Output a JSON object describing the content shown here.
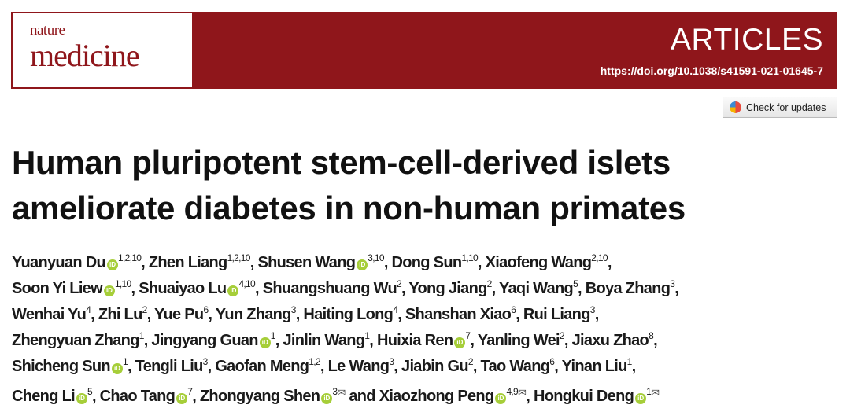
{
  "journal": {
    "logo_top": "nature",
    "logo_bottom": "medicine",
    "section": "ARTICLES",
    "doi": "https://doi.org/10.1038/s41591-021-01645-7",
    "brand_color": "#8f161b"
  },
  "check_updates": {
    "label": "Check for updates",
    "icon": "crossmark-icon"
  },
  "title": {
    "line1": "Human pluripotent stem-cell-derived islets",
    "line2": "ameliorate diabetes in non-human primates"
  },
  "author_lines": [
    [
      {
        "name": "Yuanyuan Du",
        "orcid": true,
        "sup": "1,2,10"
      },
      {
        "name": "Zhen Liang",
        "sup": "1,2,10"
      },
      {
        "name": "Shusen Wang",
        "orcid": true,
        "sup": "3,10"
      },
      {
        "name": "Dong Sun",
        "sup": "1,10"
      },
      {
        "name": "Xiaofeng Wang",
        "sup": "2,10",
        "trail": ","
      }
    ],
    [
      {
        "name": "Soon Yi Liew",
        "orcid": true,
        "sup": "1,10"
      },
      {
        "name": "Shuaiyao Lu",
        "orcid": true,
        "sup": "4,10"
      },
      {
        "name": "Shuangshuang Wu",
        "sup": "2"
      },
      {
        "name": "Yong Jiang",
        "sup": "2"
      },
      {
        "name": "Yaqi Wang",
        "sup": "5"
      },
      {
        "name": "Boya Zhang",
        "sup": "3",
        "trail": ","
      }
    ],
    [
      {
        "name": "Wenhai Yu",
        "sup": "4"
      },
      {
        "name": "Zhi Lu",
        "sup": "2"
      },
      {
        "name": "Yue Pu",
        "sup": "6"
      },
      {
        "name": "Yun Zhang",
        "sup": "3"
      },
      {
        "name": "Haiting Long",
        "sup": "4"
      },
      {
        "name": "Shanshan Xiao",
        "sup": "6"
      },
      {
        "name": "Rui Liang",
        "sup": "3",
        "trail": ","
      }
    ],
    [
      {
        "name": "Zhengyuan Zhang",
        "sup": "1"
      },
      {
        "name": "Jingyang Guan",
        "orcid": true,
        "sup": "1"
      },
      {
        "name": "Jinlin Wang",
        "sup": "1"
      },
      {
        "name": "Huixia Ren",
        "orcid": true,
        "sup": "7"
      },
      {
        "name": "Yanling Wei",
        "sup": "2"
      },
      {
        "name": "Jiaxu Zhao",
        "sup": "8",
        "trail": ","
      }
    ],
    [
      {
        "name": "Shicheng Sun",
        "orcid": true,
        "sup": "1"
      },
      {
        "name": "Tengli Liu",
        "sup": "3"
      },
      {
        "name": "Gaofan Meng",
        "sup": "1,2"
      },
      {
        "name": "Le Wang",
        "sup": "3"
      },
      {
        "name": "Jiabin Gu",
        "sup": "2"
      },
      {
        "name": "Tao Wang",
        "sup": "6"
      },
      {
        "name": "Yinan Liu",
        "sup": "1",
        "trail": ","
      }
    ],
    [
      {
        "name": "Cheng Li",
        "orcid": true,
        "sup": "5"
      },
      {
        "name": "Chao Tang",
        "orcid": true,
        "sup": "7"
      },
      {
        "name": "Zhongyang Shen",
        "orcid": true,
        "sup": "3",
        "email": true
      },
      {
        "name": "Xiaozhong Peng",
        "orcid": true,
        "sup": "4,9",
        "email": true,
        "sep": " and "
      },
      {
        "name": "Hongkui Deng",
        "orcid": true,
        "sup": "1",
        "email": true,
        "trail": ""
      }
    ]
  ]
}
